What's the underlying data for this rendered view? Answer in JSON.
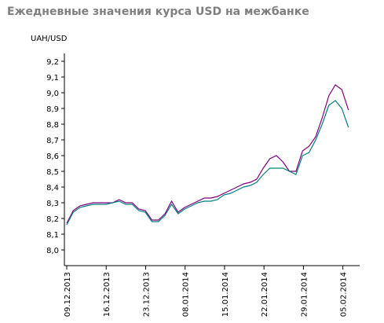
{
  "chart_data": {
    "type": "line",
    "title": "Ежедневные значения курса USD на межбанке",
    "ylabel": "UAH/USD",
    "ylim": [
      7.9,
      9.25
    ],
    "yticks": [
      "8,0",
      "8,1",
      "8,2",
      "8,3",
      "8,4",
      "8,5",
      "8,6",
      "8,7",
      "8,8",
      "8,9",
      "9,0",
      "9,1",
      "9,2"
    ],
    "ytick_values": [
      8.0,
      8.1,
      8.2,
      8.3,
      8.4,
      8.5,
      8.6,
      8.7,
      8.8,
      8.9,
      9.0,
      9.1,
      9.2
    ],
    "xticks": [
      "09.12.2013",
      "16.12.2013",
      "23.12.2013",
      "08.01.2014",
      "15.01.2014",
      "22.01.2014",
      "29.01.2014",
      "05.02.2014"
    ],
    "xtick_index": [
      0,
      7,
      14,
      21,
      28,
      35,
      42,
      49
    ],
    "xlim": [
      0,
      51
    ],
    "grid": false,
    "series": [
      {
        "color": "#800080",
        "values": [
          8.17,
          8.25,
          8.28,
          8.29,
          8.3,
          8.3,
          8.3,
          8.3,
          8.32,
          8.3,
          8.3,
          8.26,
          8.25,
          8.19,
          8.19,
          8.23,
          8.31,
          8.24,
          8.27,
          8.29,
          8.31,
          8.33,
          8.33,
          8.34,
          8.36,
          8.38,
          8.4,
          8.42,
          8.43,
          8.45,
          8.52,
          8.58,
          8.6,
          8.56,
          8.5,
          8.5,
          8.63,
          8.66,
          8.72,
          8.84,
          8.98,
          9.05,
          9.02,
          8.89
        ]
      },
      {
        "color": "#008080",
        "values": [
          8.16,
          8.24,
          8.27,
          8.28,
          8.29,
          8.29,
          8.29,
          8.3,
          8.31,
          8.29,
          8.29,
          8.25,
          8.24,
          8.18,
          8.18,
          8.22,
          8.29,
          8.23,
          8.26,
          8.28,
          8.3,
          8.31,
          8.31,
          8.32,
          8.35,
          8.36,
          8.38,
          8.4,
          8.41,
          8.43,
          8.48,
          8.52,
          8.52,
          8.52,
          8.5,
          8.48,
          8.6,
          8.62,
          8.7,
          8.8,
          8.92,
          8.95,
          8.9,
          8.78
        ]
      }
    ]
  }
}
